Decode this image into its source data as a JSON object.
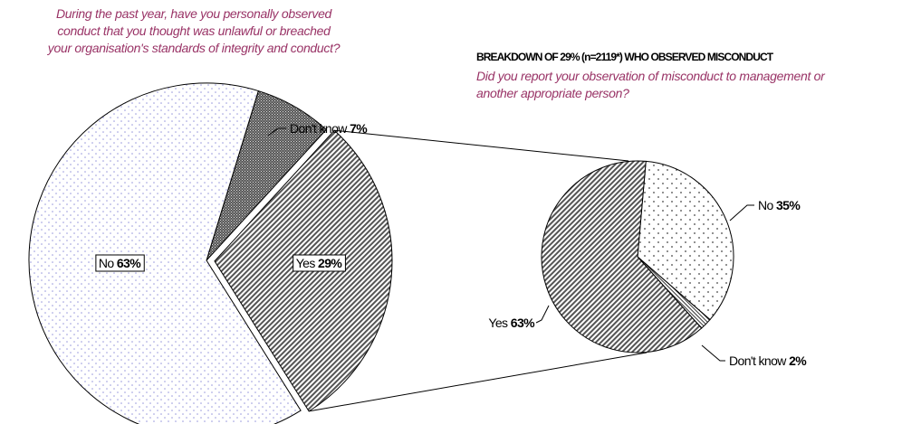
{
  "left_question": {
    "line1": "During the past year, have you personally observed",
    "line2": "conduct that you thought was unlawful or breached",
    "line3": "your organisation's standards of integrity and conduct?"
  },
  "right_heading": "BREAKDOWN OF 29% (n=2119*) WHO OBSERVED MISCONDUCT",
  "right_question": {
    "line1": "Did you report your observation of misconduct to management or",
    "line2": "another appropriate person?"
  },
  "chart_data": [
    {
      "type": "pie",
      "title": "During the past year, have you personally observed conduct that you thought was unlawful or breached your organisation's standards of integrity and conduct?",
      "slices": [
        {
          "label": "Don't know",
          "value": 7,
          "display": "7%",
          "pattern": "crosshatch-dark"
        },
        {
          "label": "Yes",
          "value": 29,
          "display": "29%",
          "pattern": "diagonal-lines",
          "exploded": true
        },
        {
          "label": "No",
          "value": 63,
          "display": "63%",
          "pattern": "dots-blue"
        }
      ]
    },
    {
      "type": "pie",
      "title": "BREAKDOWN OF 29% (n=2119*) WHO OBSERVED MISCONDUCT",
      "subtitle": "Did you report your observation of misconduct to management or another appropriate person?",
      "slices": [
        {
          "label": "No",
          "value": 35,
          "display": "35%",
          "pattern": "dots-sparse"
        },
        {
          "label": "Don't know",
          "value": 2,
          "display": "2%",
          "pattern": "diagonal-fine"
        },
        {
          "label": "Yes",
          "value": 63,
          "display": "63%",
          "pattern": "diagonal-lines"
        }
      ]
    }
  ]
}
